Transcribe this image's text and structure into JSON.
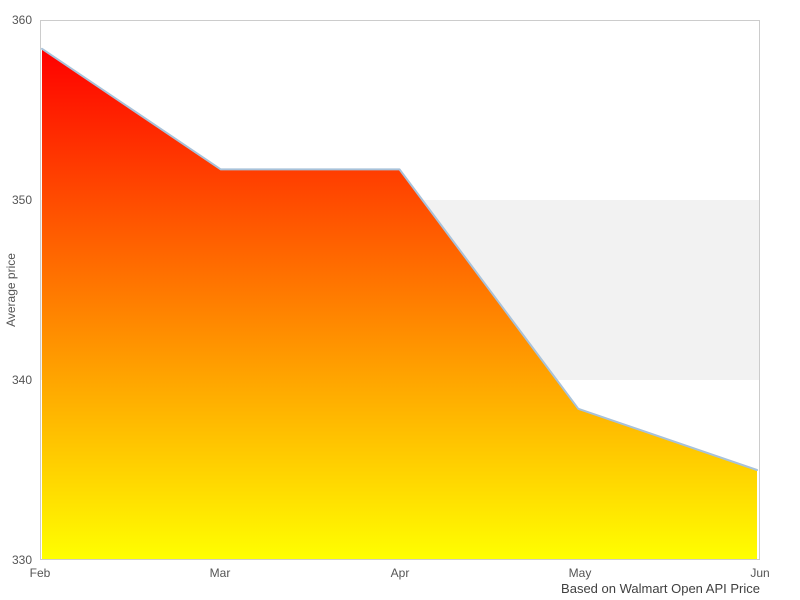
{
  "chart_data": {
    "type": "area",
    "categories": [
      "Feb",
      "Mar",
      "Apr",
      "May",
      "Jun"
    ],
    "values": [
      358.4,
      351.7,
      351.7,
      338.4,
      335.0
    ],
    "title": "",
    "xlabel": "",
    "ylabel": "Average price",
    "ylim": [
      330,
      360
    ],
    "yticks": [
      330,
      340,
      350,
      360
    ],
    "grid": false,
    "legend": false,
    "plot_band": {
      "from": 340,
      "to": 350,
      "color": "#f2f2f2"
    },
    "area_gradient_top": "#ff0000",
    "area_gradient_bottom": "#ffff00",
    "line_color": "#a8c2da",
    "plot_border_color": "#cccccc",
    "caption": "Based on Walmart Open API Price"
  }
}
